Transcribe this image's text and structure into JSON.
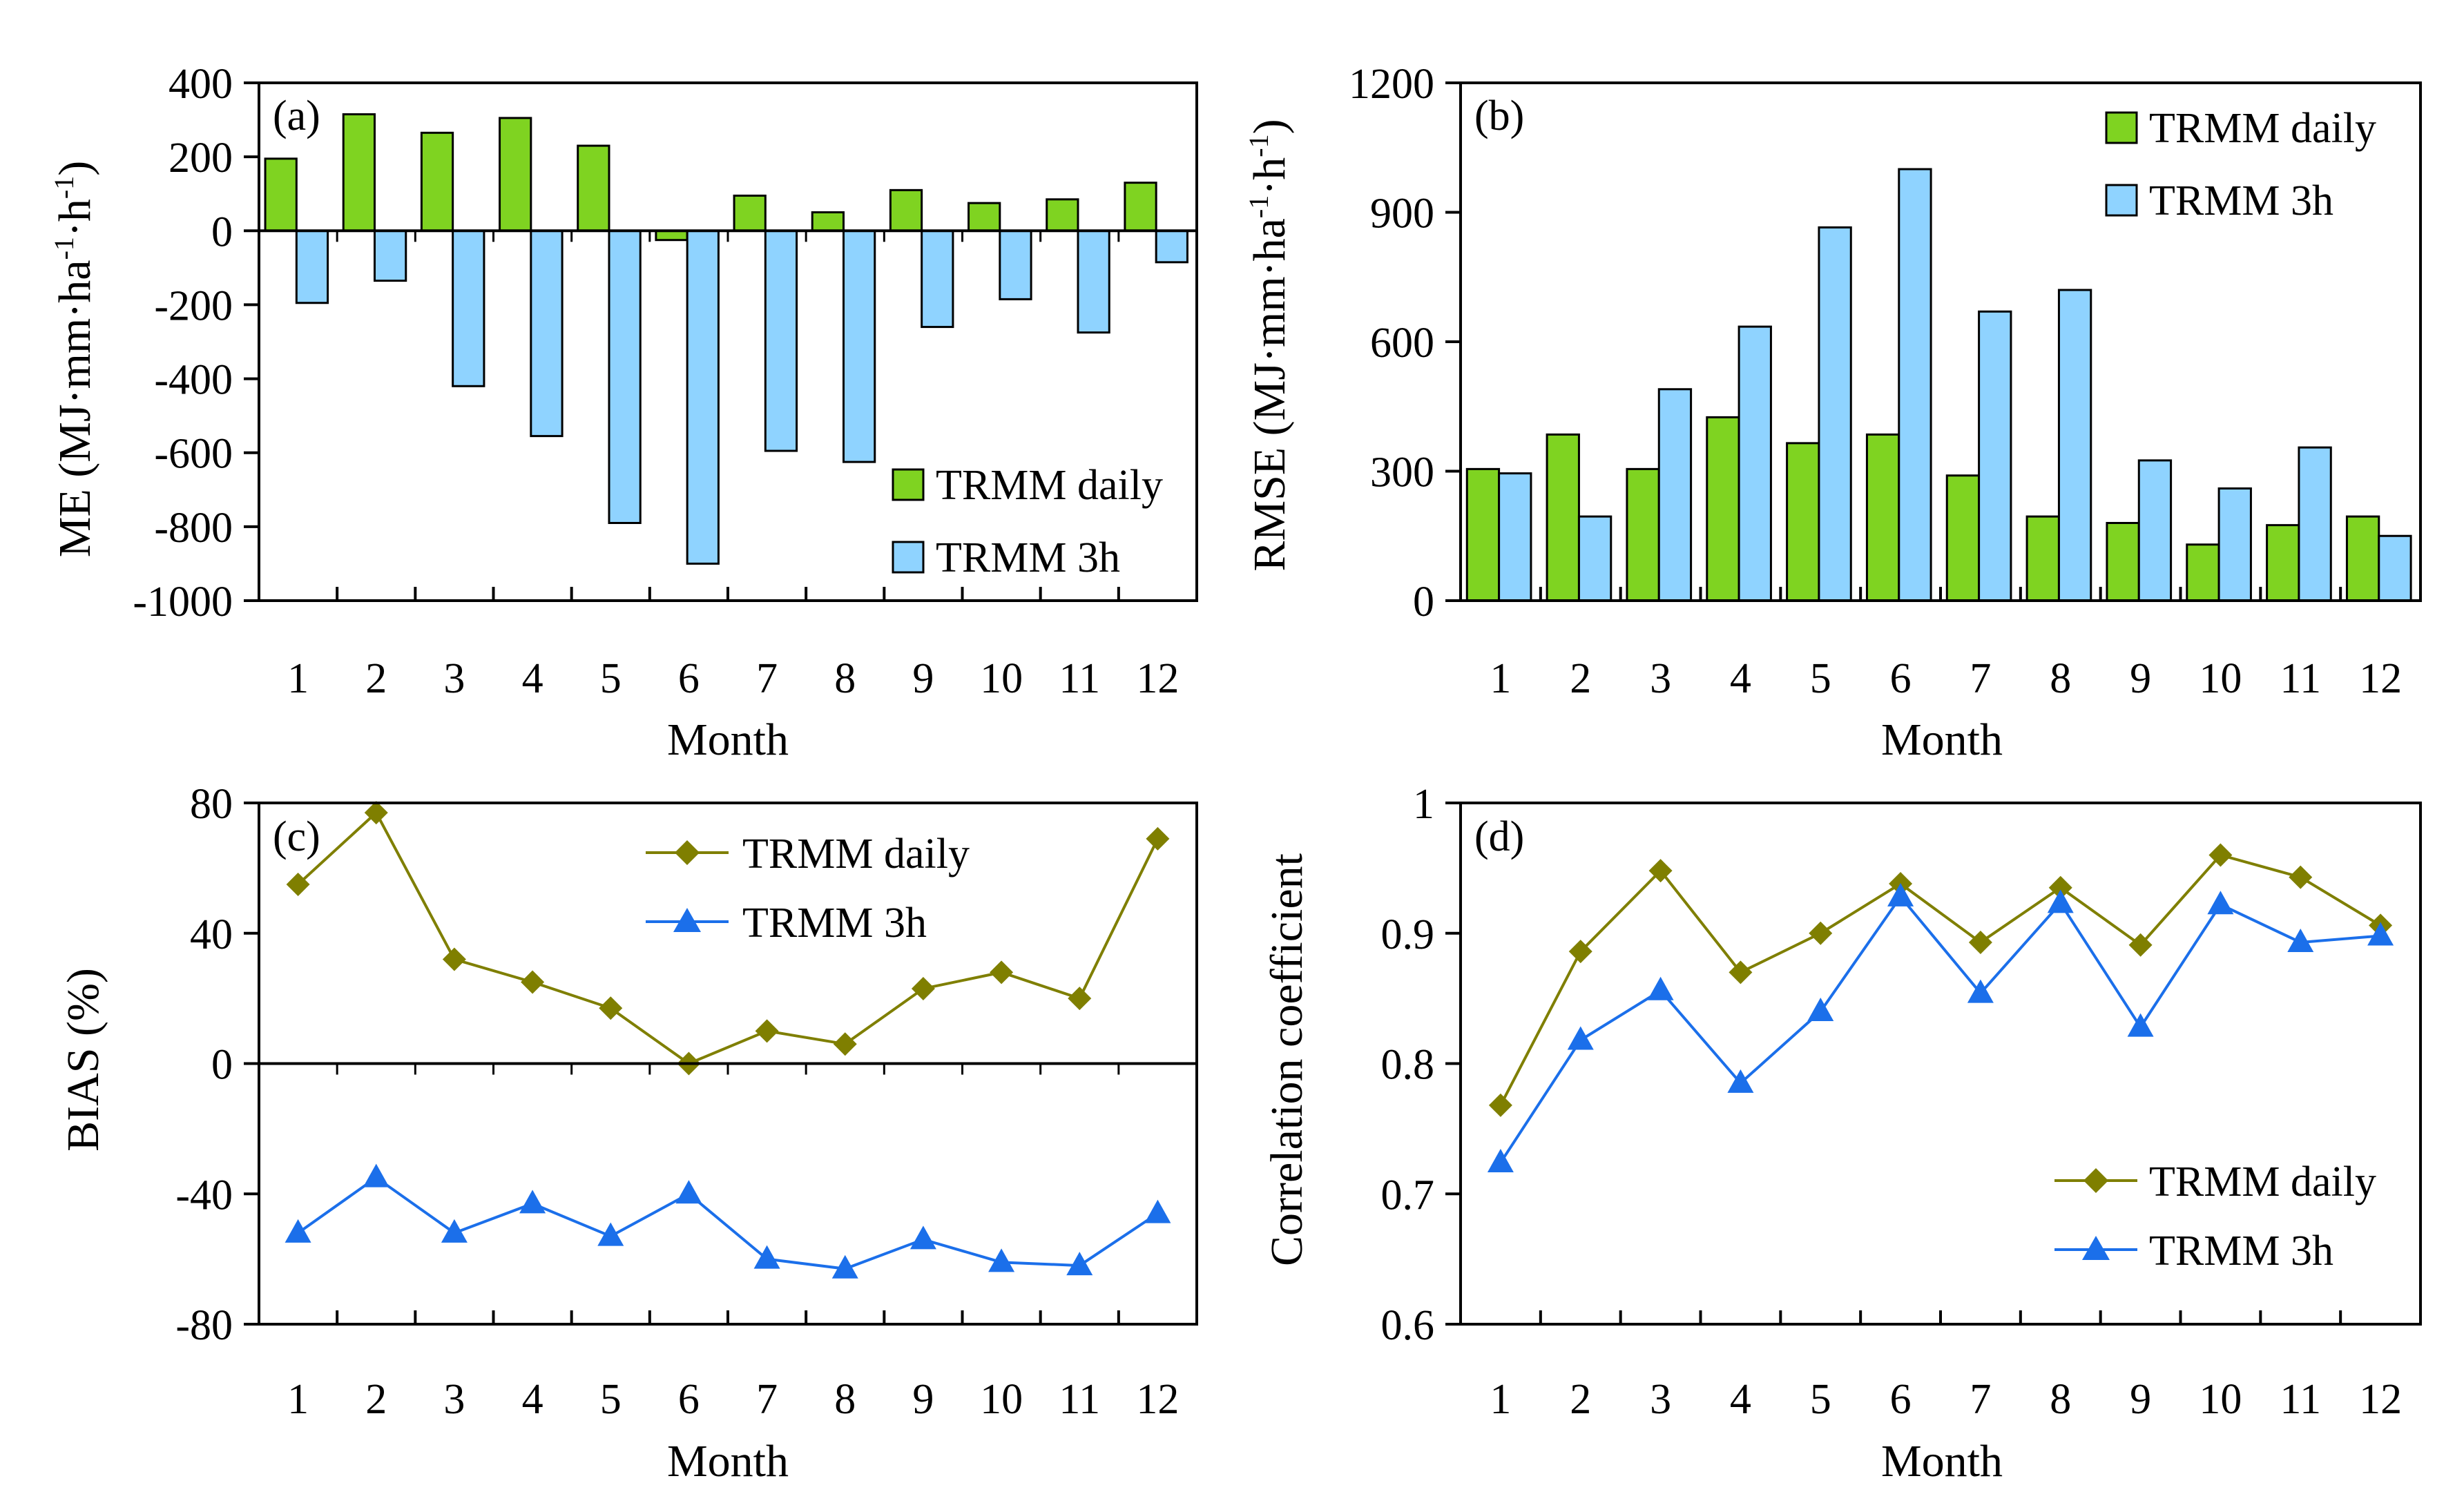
{
  "figure": {
    "colors": {
      "daily_bar": "#7FD321",
      "h3_bar": "#8FD3FF",
      "daily_line": "#7F7F00",
      "h3_line": "#1B6FEA",
      "bar_edge": "#000000"
    }
  },
  "chart_data": [
    {
      "id": "a",
      "type": "bar",
      "panel_label": "(a)",
      "title": "",
      "xlabel": "Month",
      "ylabel_main": "ME (MJ·mm·ha",
      "ylabel_sup1": "-1",
      "ylabel_mid": "·h",
      "ylabel_sup2": "-1",
      "ylabel_end": ")",
      "categories": [
        "1",
        "2",
        "3",
        "4",
        "5",
        "6",
        "7",
        "8",
        "9",
        "10",
        "11",
        "12"
      ],
      "ylim": [
        -1000,
        400
      ],
      "yticks": [
        400,
        200,
        0,
        -200,
        -400,
        -600,
        -800,
        -1000
      ],
      "ytick_labels": [
        "400",
        "200",
        "0",
        "-200",
        "-400",
        "-600",
        "-800",
        "-1000"
      ],
      "zero_line": true,
      "legend_position": "bottom-right",
      "series": [
        {
          "name": "TRMM daily",
          "values": [
            195,
            315,
            265,
            305,
            230,
            -25,
            95,
            50,
            110,
            75,
            85,
            130
          ]
        },
        {
          "name": "TRMM 3h",
          "values": [
            -195,
            -135,
            -420,
            -555,
            -790,
            -900,
            -595,
            -625,
            -260,
            -185,
            -275,
            -85
          ]
        }
      ]
    },
    {
      "id": "b",
      "type": "bar",
      "panel_label": "(b)",
      "title": "",
      "xlabel": "Month",
      "ylabel_main": "RMSE (MJ·mm·ha",
      "ylabel_sup1": "-1",
      "ylabel_mid": "·h",
      "ylabel_sup2": "-1",
      "ylabel_end": ")",
      "categories": [
        "1",
        "2",
        "3",
        "4",
        "5",
        "6",
        "7",
        "8",
        "9",
        "10",
        "11",
        "12"
      ],
      "ylim": [
        0,
        1200
      ],
      "yticks": [
        1200,
        900,
        600,
        300,
        0
      ],
      "ytick_labels": [
        "1200",
        "900",
        "600",
        "300",
        "0"
      ],
      "zero_line": false,
      "legend_position": "top-right",
      "series": [
        {
          "name": "TRMM daily",
          "values": [
            305,
            385,
            305,
            425,
            365,
            385,
            290,
            195,
            180,
            130,
            175,
            195
          ]
        },
        {
          "name": "TRMM 3h",
          "values": [
            295,
            195,
            490,
            635,
            865,
            1000,
            670,
            720,
            325,
            260,
            355,
            150
          ]
        }
      ]
    },
    {
      "id": "c",
      "type": "line",
      "panel_label": "(c)",
      "title": "",
      "xlabel": "Month",
      "ylabel": "BIAS (%)",
      "categories": [
        "1",
        "2",
        "3",
        "4",
        "5",
        "6",
        "7",
        "8",
        "9",
        "10",
        "11",
        "12"
      ],
      "ylim": [
        -80,
        80
      ],
      "yticks": [
        80,
        40,
        0,
        -40,
        -80
      ],
      "ytick_labels": [
        "80",
        "40",
        "0",
        "-40",
        "-80"
      ],
      "zero_line": true,
      "legend_position": "top-center",
      "series": [
        {
          "name": "TRMM daily",
          "marker": "diamond",
          "values": [
            55,
            77,
            32,
            25,
            17,
            0,
            10,
            6,
            23,
            28,
            20,
            69
          ]
        },
        {
          "name": "TRMM 3h",
          "marker": "triangle",
          "values": [
            -52,
            -35,
            -52,
            -43,
            -53,
            -40,
            -60,
            -63,
            -54,
            -61,
            -62,
            -46
          ]
        }
      ]
    },
    {
      "id": "d",
      "type": "line",
      "panel_label": "(d)",
      "title": "",
      "xlabel": "Month",
      "ylabel": "Correlation coefficient",
      "categories": [
        "1",
        "2",
        "3",
        "4",
        "5",
        "6",
        "7",
        "8",
        "9",
        "10",
        "11",
        "12"
      ],
      "ylim": [
        0.6,
        1.0
      ],
      "yticks": [
        1.0,
        0.9,
        0.8,
        0.7,
        0.6
      ],
      "ytick_labels": [
        "1",
        "0.9",
        "0.8",
        "0.7",
        "0.6"
      ],
      "zero_line": false,
      "legend_position": "bottom-right",
      "series": [
        {
          "name": "TRMM daily",
          "marker": "diamond",
          "values": [
            0.768,
            0.886,
            0.948,
            0.87,
            0.9,
            0.938,
            0.893,
            0.935,
            0.891,
            0.96,
            0.943,
            0.906
          ]
        },
        {
          "name": "TRMM 3h",
          "marker": "triangle",
          "values": [
            0.724,
            0.818,
            0.856,
            0.785,
            0.84,
            0.928,
            0.854,
            0.923,
            0.828,
            0.922,
            0.893,
            0.898
          ]
        }
      ]
    }
  ]
}
